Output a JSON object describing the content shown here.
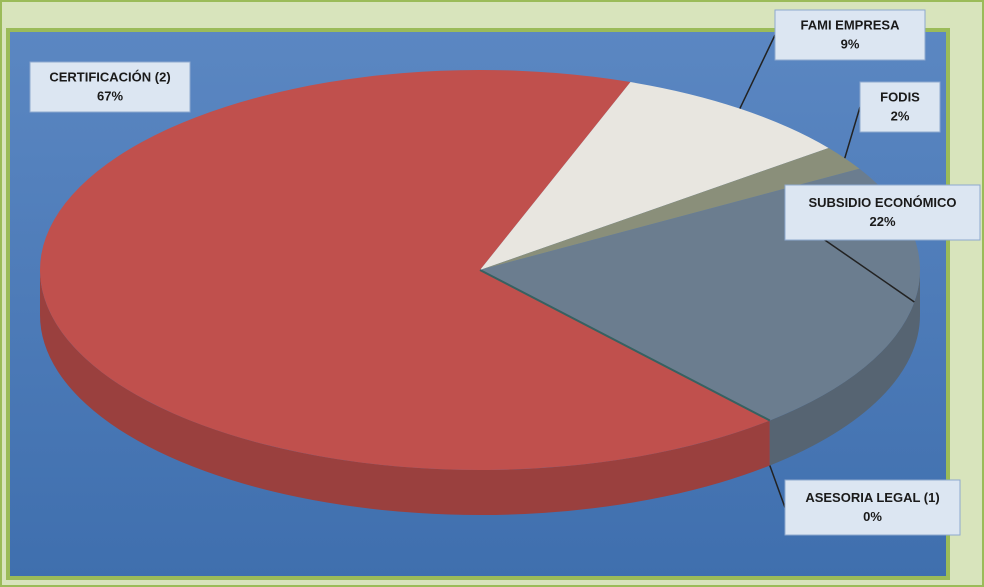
{
  "chart_data": {
    "type": "pie",
    "categories": [
      "CERTIFICACIÓN (2)",
      "FAMI EMPRESA",
      "FODIS",
      "SUBSIDIO ECONÓMICO",
      "ASESORIA LEGAL (1)"
    ],
    "values": [
      67,
      9,
      2,
      22,
      0
    ],
    "value_labels": [
      "67%",
      "9%",
      "2%",
      "22%",
      "0%"
    ],
    "colors": [
      "#c0504d",
      "#e8e6e0",
      "#8a8f7a",
      "#6b7d8f",
      "#4f8a8b"
    ]
  }
}
